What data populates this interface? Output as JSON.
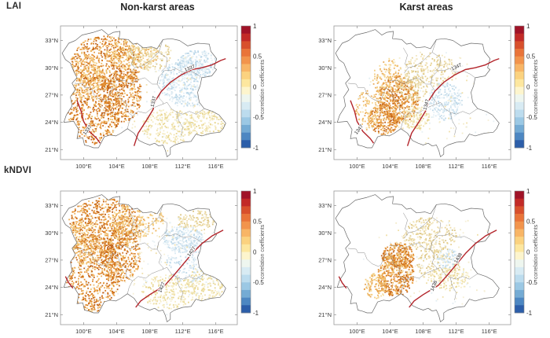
{
  "figure": {
    "row_labels": [
      "LAI",
      "kNDVI"
    ],
    "col_headers": [
      "Non-karst areas",
      "Karst areas"
    ],
    "colorbar": {
      "title": "correlation coefficients",
      "tick_labels": [
        "1",
        "0.5",
        "0",
        "-0.5",
        "-1"
      ],
      "tick_values": [
        1,
        0.5,
        0,
        -0.5,
        -1
      ],
      "colors_top_to_bottom": [
        "#a01327",
        "#c22a27",
        "#d8502c",
        "#e97439",
        "#f2944c",
        "#f8b566",
        "#fbd27f",
        "#fde79f",
        "#fdf5cd",
        "#eef6ef",
        "#d8ebf3",
        "#bcdcee",
        "#9bc8e4",
        "#74abd4",
        "#4d87c2",
        "#2c5ea9"
      ]
    },
    "axes": {
      "x_tick_labels": [
        "100°E",
        "104°E",
        "108°E",
        "112°E",
        "116°E"
      ],
      "x_tick_values": [
        100,
        104,
        108,
        112,
        116
      ],
      "y_tick_labels": [
        "33°N",
        "30°N",
        "27°N",
        "24°N",
        "21°N"
      ],
      "y_tick_values": [
        33,
        30,
        27,
        24,
        21
      ],
      "lon_range": [
        97.2,
        118.6
      ],
      "lat_range": [
        19.9,
        34.6
      ]
    },
    "isoline_color": "#b3252b"
  },
  "chart_data": {
    "type": "heatmap",
    "title": "",
    "description": "Four map panels of correlation coefficients (-1 to 1, RdYlBu colorbar) over southwest China (about 97-118E, 20-34.5N). Rows: LAI and kNDVI; columns: Non-karst areas and Karst areas. Strong positive (orange) correlations in the west (Sichuan/Yunnan/Guizhou), weak negative (pale blue) in the east. A dark red isoline crosses each panel with labels.",
    "colorbar_range": [
      -1,
      1
    ],
    "legend_label": "correlation coefficients",
    "palettes": {
      "orange_strong": [
        "#c06018",
        "#d4761f",
        "#e08a2e",
        "#ea9c42",
        "#f1b05a",
        "#edbe6b"
      ],
      "orange_mix": [
        "#e8a753",
        "#f0ba67",
        "#f4cc80",
        "#f8dc9a"
      ],
      "tan_pale": [
        "#e6d193",
        "#eedcaa",
        "#dcc582",
        "#f2e6bd"
      ],
      "blue_pale": [
        "#cadfec",
        "#d9eaf3",
        "#b9d6e8",
        "#e6f1f7"
      ],
      "yellow_pale": [
        "#f0e2ab",
        "#e8d690",
        "#f6edc6"
      ],
      "mixed_pale": [
        "#f3ebc9",
        "#e8f1f4",
        "#f6efd7",
        "#e2edf2",
        "#f0dfa8"
      ]
    },
    "panels": [
      {
        "id": "lai-non-karst",
        "row": "LAI",
        "col": "Non-karst areas",
        "contour_label": "1337",
        "line": "lai",
        "west_segment": "long",
        "seed": 11,
        "label_positions": [
          {
            "lon": 100.6,
            "lat": 23.05,
            "rot": -52
          },
          {
            "lon": 108.62,
            "lat": 26.25,
            "rot": -78
          },
          {
            "lon": 112.9,
            "lat": 29.8,
            "rot": -22
          }
        ],
        "scatter_zones": [
          {
            "lon": 101.1,
            "lat": 25.6,
            "rlon": 3.3,
            "rlat": 4.0,
            "count": 620,
            "palette": "orange_strong"
          },
          {
            "lon": 102.6,
            "lat": 30.6,
            "rlon": 4.3,
            "rlat": 3.0,
            "count": 600,
            "palette": "orange_strong"
          },
          {
            "lon": 104.6,
            "lat": 27.3,
            "rlon": 2.4,
            "rlat": 3.2,
            "count": 380,
            "palette": "orange_strong"
          },
          {
            "lon": 100.0,
            "lat": 29.0,
            "rlon": 2.2,
            "rlat": 2.5,
            "count": 200,
            "palette": "orange_mix"
          },
          {
            "lon": 105.8,
            "lat": 31.6,
            "rlon": 3.2,
            "rlat": 1.7,
            "count": 220,
            "palette": "orange_mix"
          },
          {
            "lon": 108.0,
            "lat": 31.4,
            "rlon": 2.8,
            "rlat": 1.6,
            "count": 170,
            "palette": "tan_pale"
          },
          {
            "lon": 112.4,
            "lat": 28.4,
            "rlon": 3.3,
            "rlat": 2.6,
            "count": 470,
            "palette": "blue_pale"
          },
          {
            "lon": 113.8,
            "lat": 30.6,
            "rlon": 2.6,
            "rlat": 1.4,
            "count": 200,
            "palette": "blue_pale"
          },
          {
            "lon": 110.2,
            "lat": 23.6,
            "rlon": 3.3,
            "rlat": 1.9,
            "count": 240,
            "palette": "yellow_pale"
          },
          {
            "lon": 114.6,
            "lat": 23.9,
            "rlon": 2.4,
            "rlat": 1.5,
            "count": 160,
            "palette": "yellow_pale"
          },
          {
            "lon": 109.5,
            "lat": 26.0,
            "rlon": 9.5,
            "rlat": 6.0,
            "count": 200,
            "palette": "mixed_pale"
          }
        ]
      },
      {
        "id": "lai-karst",
        "row": "LAI",
        "col": "Karst areas",
        "contour_label": "1347",
        "line": "lai",
        "west_segment": "long",
        "seed": 22,
        "label_positions": [
          {
            "lon": 100.35,
            "lat": 23.1,
            "rot": -52
          },
          {
            "lon": 108.55,
            "lat": 25.9,
            "rot": -75
          },
          {
            "lon": 112.1,
            "lat": 29.95,
            "rot": -25
          }
        ],
        "scatter_zones": [
          {
            "lon": 104.9,
            "lat": 26.6,
            "rlon": 2.5,
            "rlat": 2.7,
            "count": 480,
            "palette": "orange_strong"
          },
          {
            "lon": 103.2,
            "lat": 24.4,
            "rlon": 1.9,
            "rlat": 1.7,
            "count": 240,
            "palette": "orange_strong"
          },
          {
            "lon": 103.6,
            "lat": 29.0,
            "rlon": 1.8,
            "rlat": 2.2,
            "count": 130,
            "palette": "orange_mix"
          },
          {
            "lon": 101.3,
            "lat": 25.4,
            "rlon": 1.6,
            "rlat": 2.2,
            "count": 120,
            "palette": "orange_mix"
          },
          {
            "lon": 108.8,
            "lat": 29.8,
            "rlon": 3.2,
            "rlat": 1.9,
            "count": 200,
            "palette": "tan_pale"
          },
          {
            "lon": 106.6,
            "lat": 27.8,
            "rlon": 1.8,
            "rlat": 1.5,
            "count": 110,
            "palette": "tan_pale"
          },
          {
            "lon": 110.6,
            "lat": 26.4,
            "rlon": 2.1,
            "rlat": 2.1,
            "count": 230,
            "palette": "blue_pale"
          },
          {
            "lon": 107.0,
            "lat": 24.6,
            "rlon": 1.7,
            "rlat": 1.3,
            "count": 130,
            "palette": "yellow_pale"
          },
          {
            "lon": 109.5,
            "lat": 26.0,
            "rlon": 9.5,
            "rlat": 6.0,
            "count": 140,
            "palette": "mixed_pale"
          }
        ]
      },
      {
        "id": "kndvi-non-karst",
        "row": "kNDVI",
        "col": "Non-karst areas",
        "contour_label": "1427",
        "line": "kndvi",
        "west_segment": "short",
        "seed": 33,
        "label_positions": [
          {
            "lon": 109.6,
            "lat": 23.95,
            "rot": -68
          },
          {
            "lon": 113.2,
            "lat": 27.85,
            "rot": -55
          }
        ],
        "scatter_zones": [
          {
            "lon": 101.1,
            "lat": 25.6,
            "rlon": 3.3,
            "rlat": 4.2,
            "count": 650,
            "palette": "orange_strong"
          },
          {
            "lon": 102.4,
            "lat": 31.0,
            "rlon": 4.4,
            "rlat": 2.9,
            "count": 650,
            "palette": "orange_strong"
          },
          {
            "lon": 104.4,
            "lat": 27.6,
            "rlon": 2.4,
            "rlat": 3.0,
            "count": 400,
            "palette": "orange_strong"
          },
          {
            "lon": 106.4,
            "lat": 31.4,
            "rlon": 3.3,
            "rlat": 1.8,
            "count": 260,
            "palette": "orange_mix"
          },
          {
            "lon": 99.9,
            "lat": 28.9,
            "rlon": 2.2,
            "rlat": 2.4,
            "count": 200,
            "palette": "orange_mix"
          },
          {
            "lon": 111.9,
            "lat": 29.4,
            "rlon": 2.5,
            "rlat": 1.5,
            "count": 260,
            "palette": "blue_pale"
          },
          {
            "lon": 112.8,
            "lat": 26.8,
            "rlon": 3.0,
            "rlat": 2.2,
            "count": 180,
            "palette": "blue_pale"
          },
          {
            "lon": 110.2,
            "lat": 23.6,
            "rlon": 3.3,
            "rlat": 1.9,
            "count": 230,
            "palette": "yellow_pale"
          },
          {
            "lon": 114.6,
            "lat": 24.4,
            "rlon": 2.4,
            "rlat": 1.8,
            "count": 170,
            "palette": "yellow_pale"
          },
          {
            "lon": 113.6,
            "lat": 31.4,
            "rlon": 2.4,
            "rlat": 1.1,
            "count": 120,
            "palette": "tan_pale"
          },
          {
            "lon": 109.5,
            "lat": 26.0,
            "rlon": 9.5,
            "rlat": 6.0,
            "count": 220,
            "palette": "mixed_pale"
          }
        ]
      },
      {
        "id": "kndvi-karst",
        "row": "kNDVI",
        "col": "Karst areas",
        "contour_label": "1438",
        "line": "kndvi",
        "west_segment": "short",
        "seed": 44,
        "label_positions": [
          {
            "lon": 109.45,
            "lat": 24.1,
            "rot": -68
          },
          {
            "lon": 112.4,
            "lat": 27.15,
            "rot": -60
          }
        ],
        "scatter_zones": [
          {
            "lon": 104.6,
            "lat": 25.4,
            "rlon": 2.2,
            "rlat": 2.4,
            "count": 430,
            "palette": "orange_strong"
          },
          {
            "lon": 104.9,
            "lat": 27.6,
            "rlon": 2.0,
            "rlat": 1.4,
            "count": 240,
            "palette": "orange_strong"
          },
          {
            "lon": 102.2,
            "lat": 24.2,
            "rlon": 1.5,
            "rlat": 1.4,
            "count": 130,
            "palette": "orange_mix"
          },
          {
            "lon": 108.7,
            "lat": 29.9,
            "rlon": 3.3,
            "rlat": 1.9,
            "count": 230,
            "palette": "tan_pale"
          },
          {
            "lon": 109.8,
            "lat": 26.6,
            "rlon": 2.6,
            "rlat": 2.0,
            "count": 170,
            "palette": "tan_pale"
          },
          {
            "lon": 111.2,
            "lat": 25.1,
            "rlon": 2.4,
            "rlat": 1.4,
            "count": 120,
            "palette": "yellow_pale"
          },
          {
            "lon": 110.9,
            "lat": 27.2,
            "rlon": 1.5,
            "rlat": 1.1,
            "count": 90,
            "palette": "blue_pale"
          },
          {
            "lon": 109.5,
            "lat": 26.0,
            "rlon": 9.5,
            "rlat": 6.0,
            "count": 150,
            "palette": "mixed_pale"
          }
        ]
      }
    ]
  }
}
